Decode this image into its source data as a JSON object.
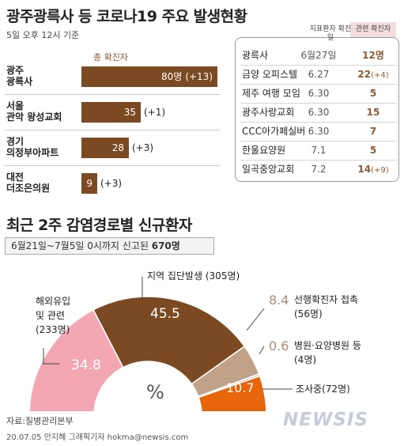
{
  "header": {
    "title": "광주광륵사 등 코로나19 주요 발생현황",
    "as_of": "5일 오후 12시 기준",
    "total_label": "총 확진자"
  },
  "cluster_bars": [
    {
      "name_line1": "광주",
      "name_line2": "광륵사",
      "value": 80,
      "value_label": "80명",
      "increase": "(+13)"
    },
    {
      "name_line1": "서울",
      "name_line2": "관악 왕성교회",
      "value": 35,
      "value_label": "35",
      "increase": "(+1)"
    },
    {
      "name_line1": "경기",
      "name_line2": "의정부아파트",
      "value": 28,
      "value_label": "28",
      "increase": "(+3)"
    },
    {
      "name_line1": "대전",
      "name_line2": "더조은의원",
      "value": 9,
      "value_label": "9",
      "increase": "(+3)"
    }
  ],
  "table": {
    "col_date": "지표환자 확진일",
    "col_count": "관련 확진자",
    "rows": [
      {
        "name": "광륵사",
        "date": "6월27일",
        "count": "12명",
        "inc": ""
      },
      {
        "name": "금양 오피스텔",
        "date": "6.27",
        "count": "22",
        "inc": "(+4)"
      },
      {
        "name": "제주 여행 모임",
        "date": "6.30",
        "count": "5",
        "inc": ""
      },
      {
        "name": "광주사랑교회",
        "date": "6.30",
        "count": "15",
        "inc": ""
      },
      {
        "name": "CCC아가페실버",
        "date": "6.30",
        "count": "7",
        "inc": ""
      },
      {
        "name": "한울요양원",
        "date": "7.1",
        "count": "5",
        "inc": ""
      },
      {
        "name": "일곡중앙교회",
        "date": "7.2",
        "count": "14",
        "inc": "(+9)"
      }
    ]
  },
  "section": {
    "title": "최근 2주 감염경로별 신규환자",
    "period_prefix": "6월21일~7월5일 0시까지 신고된 ",
    "period_total": "670명",
    "center_label": "%"
  },
  "chart_data": [
    {
      "type": "bar",
      "title": "광주광륵사 등 코로나19 주요 발생현황",
      "categories": [
        "광주 광륵사",
        "서울 관악 왕성교회",
        "경기 의정부아파트",
        "대전 더조은의원"
      ],
      "values": [
        80,
        35,
        28,
        9
      ],
      "increase": [
        13,
        1,
        3,
        3
      ],
      "legend": "총 확진자"
    },
    {
      "type": "pie",
      "title": "최근 2주 감염경로별 신규환자",
      "unit": "%",
      "categories": [
        "해외유입 및 관련",
        "지역 집단발생",
        "선행확진자 접촉",
        "병원·요양병원 등",
        "조사중"
      ],
      "values": [
        34.8,
        45.5,
        8.4,
        0.6,
        10.7
      ],
      "counts": [
        "233명",
        "305명",
        "56명",
        "4명",
        "72명"
      ],
      "colors": [
        "#f2a7b3",
        "#7b4a22",
        "#bfa288",
        "#c7c7c7",
        "#e8650a"
      ]
    }
  ],
  "labels": {
    "overseas_line1": "해외유입",
    "overseas_line2": "및 관련",
    "overseas_count": "(233명)",
    "overseas_pct": "34.8",
    "local_label": "지역 집단발생 (305명)",
    "local_pct": "45.5",
    "contact_pct": "8.4",
    "contact_label": "선행확진자 접촉",
    "contact_count": "(56명)",
    "hospital_pct": "0.6",
    "hospital_label": "병원·요양병원 등",
    "hospital_count": "(4명)",
    "investigating_pct": "10.7",
    "investigating_label": "조사중(72명)"
  },
  "footer": {
    "source": "자료:질병관리본부",
    "credit": "20.07.05 안지혜 그래픽기자 hokma@newsis.com",
    "logo": "NEWSIS"
  }
}
